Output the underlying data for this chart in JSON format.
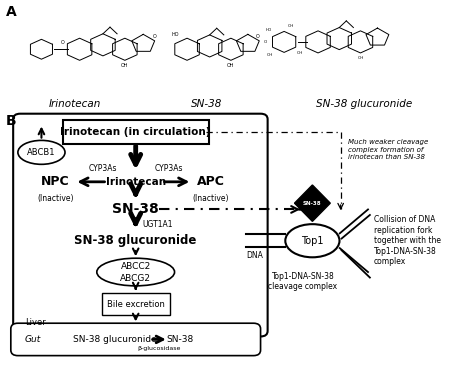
{
  "title_A": "A",
  "title_B": "B",
  "label_irinotecan": "Irinotecan",
  "label_sn38": "SN-38",
  "label_sn38g": "SN-38 glucuronide",
  "label_circulation": "Irinotecan (in circulation)",
  "label_ABCB1": "ABCB1",
  "label_CYP3As_left": "CYP3As",
  "label_CYP3As_right": "CYP3As",
  "label_NPC": "NPC",
  "label_NPC_sub": "(Inactive)",
  "label_APC": "APC",
  "label_APC_sub": "(Inactive)",
  "label_irinotecan_center": "Irinotecan",
  "label_SN38_center": "SN-38",
  "label_UGT1A1": "UGT1A1",
  "label_SN38G_center": "SN-38 glucuronide",
  "label_liver": "Liver",
  "label_ABCC2": "ABCC2",
  "label_ABCG2": "ABCG2",
  "label_bile": "Bile excretion",
  "label_gut": "Gut",
  "label_gut_sn38g": "SN-38 glucuronide",
  "label_beta": "β-glucosidase",
  "label_gut_sn38": "SN-38",
  "label_SN38_diamond": "SN-38",
  "label_Top1": "Top1",
  "label_DNA": "DNA",
  "label_cleavage": "Top1-DNA-SN-38\ncleavage complex",
  "label_collision": "Collision of DNA\nreplication fork\ntogether with the\nTop1-DNA-SN-38\ncomplex",
  "label_weaker": "Much weaker cleavage\ncomplex formation of\nirinotecan than SN-38",
  "bg_color": "#ffffff"
}
